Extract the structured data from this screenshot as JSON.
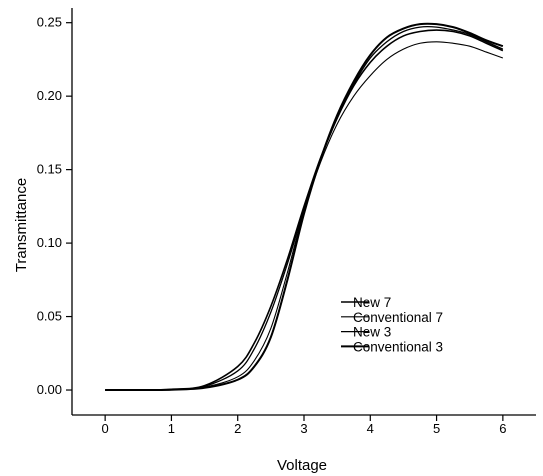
{
  "chart_data": {
    "type": "line",
    "title": "",
    "xlabel": "Voltage",
    "ylabel": "Transmittance",
    "xlim": [
      -0.5,
      6.5
    ],
    "ylim": [
      -0.017,
      0.26
    ],
    "x_ticks": [
      0,
      1,
      2,
      3,
      4,
      5,
      6
    ],
    "x_tick_labels": [
      "0",
      "1",
      "2",
      "3",
      "4",
      "5",
      "6"
    ],
    "y_ticks": [
      0.0,
      0.05,
      0.1,
      0.15,
      0.2,
      0.25
    ],
    "y_tick_labels": [
      "0.00",
      "0.05",
      "0.10",
      "0.15",
      "0.20",
      "0.25"
    ],
    "grid": false,
    "legend_position": "center-right",
    "series": [
      {
        "name": "New 7",
        "color": "#000000",
        "x": [
          0,
          0.5,
          1,
          1.5,
          2,
          2.25,
          2.5,
          2.75,
          3,
          3.25,
          3.5,
          3.75,
          4,
          4.25,
          4.5,
          4.75,
          5,
          5.25,
          5.5,
          5.75,
          6
        ],
        "y": [
          0.0,
          0.0,
          0.0005,
          0.003,
          0.016,
          0.032,
          0.057,
          0.089,
          0.125,
          0.158,
          0.185,
          0.207,
          0.223,
          0.234,
          0.241,
          0.244,
          0.245,
          0.244,
          0.241,
          0.236,
          0.231
        ]
      },
      {
        "name": "Conventional 7",
        "color": "#000000",
        "x": [
          0,
          0.5,
          1,
          1.5,
          2,
          2.25,
          2.5,
          2.75,
          3,
          3.25,
          3.5,
          3.75,
          4,
          4.25,
          4.5,
          4.75,
          5,
          5.25,
          5.5,
          5.75,
          6
        ],
        "y": [
          0.0,
          0.0,
          0.0003,
          0.002,
          0.009,
          0.02,
          0.042,
          0.08,
          0.122,
          0.155,
          0.181,
          0.2,
          0.214,
          0.225,
          0.232,
          0.236,
          0.237,
          0.236,
          0.234,
          0.23,
          0.226
        ]
      },
      {
        "name": "New 3",
        "color": "#000000",
        "x": [
          0,
          0.5,
          1,
          1.5,
          2,
          2.25,
          2.5,
          2.75,
          3,
          3.25,
          3.5,
          3.75,
          4,
          4.25,
          4.5,
          4.75,
          5,
          5.25,
          5.5,
          5.75,
          6
        ],
        "y": [
          0.0,
          0.0,
          0.0004,
          0.0025,
          0.013,
          0.028,
          0.053,
          0.086,
          0.123,
          0.157,
          0.185,
          0.208,
          0.226,
          0.237,
          0.244,
          0.247,
          0.247,
          0.245,
          0.242,
          0.237,
          0.232
        ]
      },
      {
        "name": "Conventional 3",
        "color": "#000000",
        "x": [
          0,
          0.5,
          1,
          1.5,
          2,
          2.25,
          2.5,
          2.75,
          3,
          3.25,
          3.5,
          3.75,
          4,
          4.25,
          4.5,
          4.75,
          5,
          5.25,
          5.5,
          5.75,
          6
        ],
        "y": [
          0.0,
          0.0,
          0.0002,
          0.0015,
          0.007,
          0.016,
          0.036,
          0.075,
          0.12,
          0.157,
          0.187,
          0.21,
          0.228,
          0.24,
          0.246,
          0.249,
          0.249,
          0.247,
          0.243,
          0.238,
          0.234
        ]
      }
    ]
  }
}
